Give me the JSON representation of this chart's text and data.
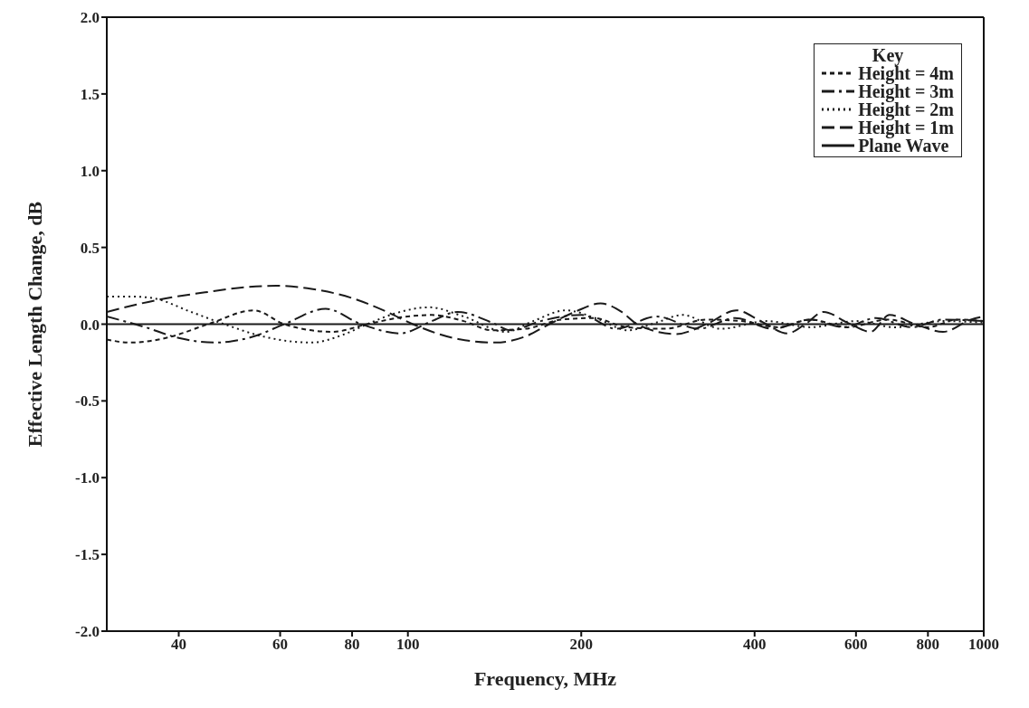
{
  "chart_data": {
    "type": "line",
    "xlabel": "Frequency, MHz",
    "ylabel": "Effective Length Change, dB",
    "legend_title": "Key",
    "legend": "top right",
    "log": "x",
    "xlim": [
      30,
      1000
    ],
    "xticks": [
      40,
      60,
      80,
      100,
      200,
      400,
      600,
      800,
      1000
    ],
    "ylim": [
      -2,
      2
    ],
    "yticks": [
      {
        "value": -2,
        "label": "-2.0"
      },
      {
        "value": -1.5,
        "label": "-1.5"
      },
      {
        "value": -1,
        "label": "-1.0"
      },
      {
        "value": -0.5,
        "label": "-0.5"
      },
      {
        "value": 0,
        "label": "0.0"
      },
      {
        "value": 0.5,
        "label": "0.5"
      },
      {
        "value": 1,
        "label": "1.0"
      },
      {
        "value": 1.5,
        "label": "1.5"
      },
      {
        "value": 2,
        "label": "2.0"
      }
    ],
    "series": [
      {
        "name": "Height = 4m",
        "color": "#1a1a1a",
        "line_style": "dashed",
        "x": [
          30,
          33,
          38,
          45,
          54,
          61,
          74,
          85,
          100,
          110,
          125,
          140,
          160,
          185,
          210,
          240,
          280,
          330,
          380,
          440,
          500,
          580,
          680,
          800,
          900,
          1000
        ],
        "values": [
          -0.1,
          -0.12,
          -0.09,
          0,
          0.09,
          0,
          -0.05,
          0,
          0.05,
          0.06,
          0.02,
          -0.04,
          -0.03,
          0.03,
          0.04,
          -0.02,
          -0.03,
          0.03,
          0.02,
          -0.02,
          0.03,
          -0.02,
          0.03,
          -0.02,
          0.03,
          0.02
        ]
      },
      {
        "name": "Height = 3m",
        "color": "#1a1a1a",
        "line_style": "dashed",
        "x": [
          30,
          35,
          40,
          46,
          54,
          61,
          72,
          83,
          97,
          110,
          122,
          140,
          151,
          170,
          200,
          230,
          270,
          320,
          370,
          430,
          500,
          570,
          650,
          750,
          850,
          1000
        ],
        "values": [
          0.05,
          -0.02,
          -0.09,
          -0.12,
          -0.08,
          0,
          0.1,
          0,
          -0.06,
          0.02,
          0.08,
          0.01,
          -0.04,
          0.02,
          0.06,
          -0.03,
          0.05,
          -0.03,
          0.04,
          -0.03,
          0.03,
          -0.02,
          0.04,
          -0.02,
          0.03,
          0.02
        ]
      },
      {
        "name": "Height = 2m",
        "color": "#1a1a1a",
        "line_style": "dotted",
        "x": [
          30,
          33,
          36,
          42,
          48,
          56,
          68,
          77,
          85,
          95,
          109,
          125,
          148,
          165,
          188,
          215,
          241,
          270,
          300,
          350,
          420,
          500,
          600,
          700,
          850,
          1000
        ],
        "values": [
          0.18,
          0.18,
          0.17,
          0.08,
          0,
          -0.08,
          -0.12,
          -0.07,
          0,
          0.07,
          0.11,
          0.05,
          -0.05,
          0.02,
          0.09,
          0.03,
          -0.04,
          0.01,
          0.06,
          -0.03,
          0.02,
          -0.02,
          0.02,
          -0.02,
          0.02,
          0.01
        ]
      },
      {
        "name": "Height = 1m",
        "color": "#1a1a1a",
        "line_style": "dashed",
        "x": [
          30,
          37,
          45,
          52,
          59,
          68,
          80,
          92,
          102,
          120,
          142,
          160,
          176,
          195,
          216,
          235,
          250,
          292,
          330,
          372,
          410,
          456,
          490,
          527,
          580,
          636,
          686,
          760,
          850,
          950,
          1000
        ],
        "values": [
          0.08,
          0.16,
          0.21,
          0.24,
          0.25,
          0.23,
          0.17,
          0.08,
          0,
          -0.09,
          -0.12,
          -0.08,
          0,
          0.08,
          0.135,
          0.08,
          0,
          -0.065,
          0,
          0.09,
          0.02,
          -0.06,
          0,
          0.08,
          0.01,
          -0.05,
          0.06,
          0,
          -0.05,
          0.03,
          0.05
        ]
      },
      {
        "name": "Plane Wave",
        "color": "#1a1a1a",
        "line_style": "solid",
        "x": [
          30,
          1000
        ],
        "values": [
          0,
          0
        ]
      }
    ]
  }
}
